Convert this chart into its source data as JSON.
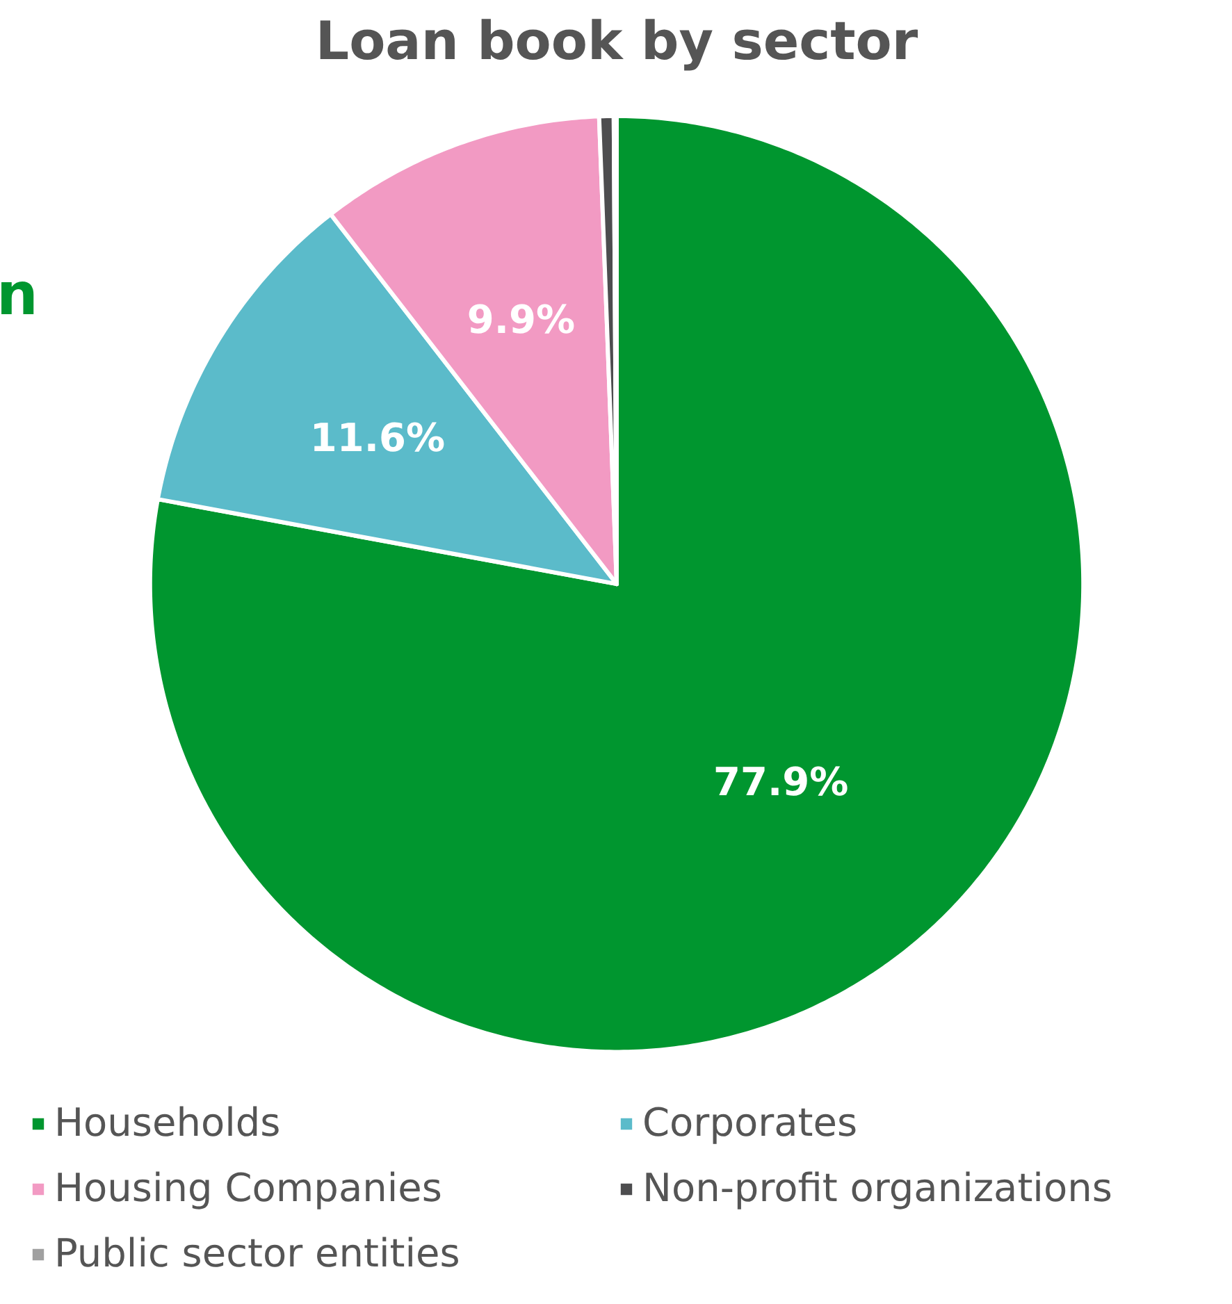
{
  "chart_data": {
    "type": "pie",
    "title": "Loan book by sector",
    "categories": [
      "Households",
      "Corporates",
      "Housing Companies",
      "Non-profit organizations",
      "Public sector entities"
    ],
    "values": [
      77.9,
      11.6,
      9.9,
      0.5,
      0.1
    ],
    "colors": [
      "#00962f",
      "#5bbbca",
      "#f29ac3",
      "#4d4d4f",
      "#a0a0a0"
    ],
    "value_labels": [
      "77.9%",
      "11.6%",
      "9.9%",
      null,
      null
    ],
    "annotations": [
      "n"
    ],
    "legend": "bottom"
  }
}
